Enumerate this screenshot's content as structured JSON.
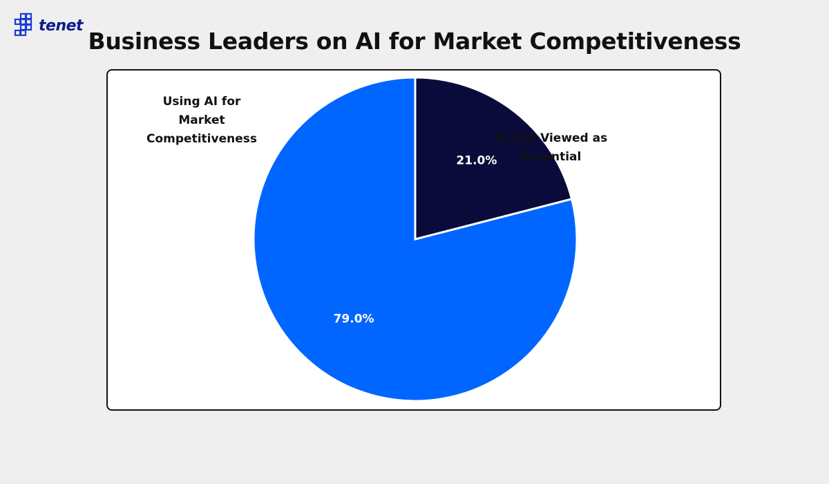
{
  "brand": {
    "name": "tenet",
    "logo_icon": "tenet-logo-icon",
    "color": "#1a3bd6"
  },
  "chart_data": {
    "type": "pie",
    "title": "Business Leaders on AI for Market Competitiveness",
    "start_angle_deg": 0,
    "direction": "clockwise",
    "slices": [
      {
        "label_lines": [
          "AI Not Viewed as",
          "Essential"
        ],
        "value": 21.0,
        "value_label": "21.0%",
        "color": "#0b0b3b"
      },
      {
        "label_lines": [
          "Using AI for",
          "Market",
          "Competitiveness"
        ],
        "value": 79.0,
        "value_label": "79.0%",
        "color": "#0066ff"
      }
    ]
  }
}
